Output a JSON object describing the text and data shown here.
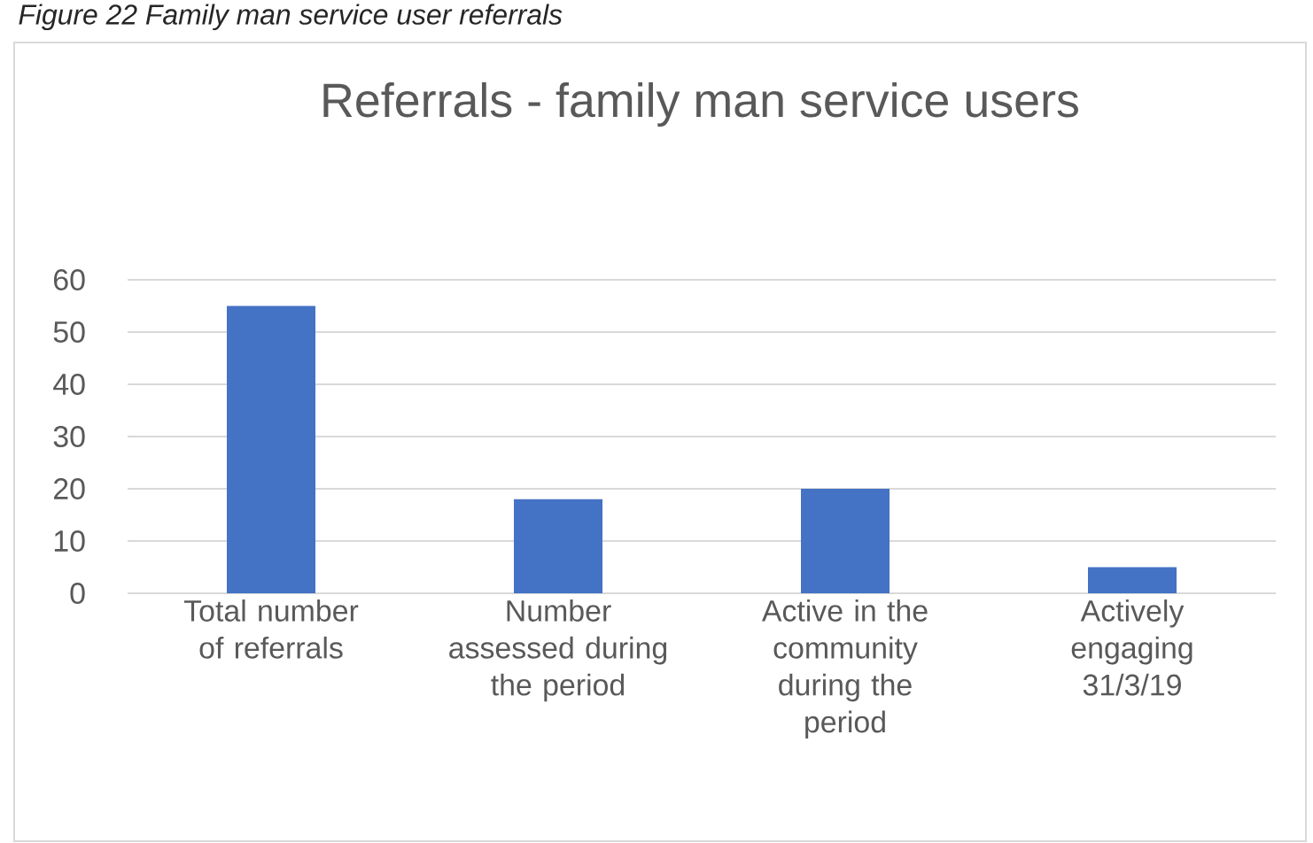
{
  "chart_data": {
    "type": "bar",
    "title": "Referrals - family man service users",
    "annotations": [
      "*Figure 22 Family man service user referrals*"
    ],
    "categories": [
      "Total number of referrals",
      "Number assessed during the period",
      "Active in the community during the period",
      "Actively engaging 31/3/19"
    ],
    "values": [
      55,
      18,
      20,
      5
    ],
    "color": "#4472c4",
    "ylim": [
      0,
      60
    ],
    "yticks": [
      0,
      10,
      20,
      30,
      40,
      50,
      60
    ],
    "grid": "y"
  }
}
